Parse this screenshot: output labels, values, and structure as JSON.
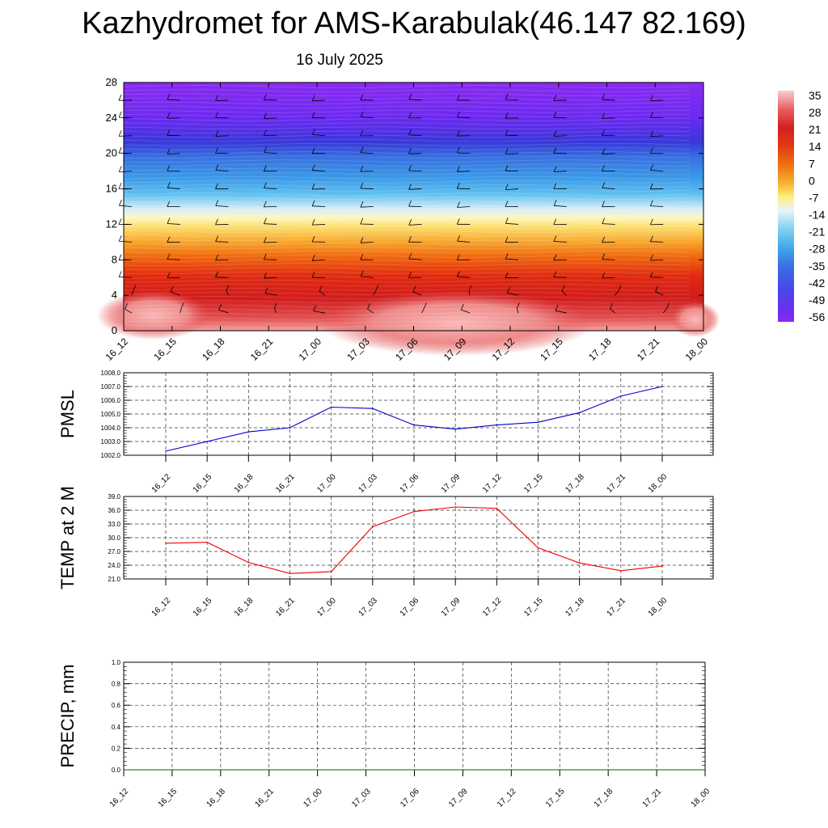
{
  "title": "Kazhydromet for AMS-Karabulak(46.147 82.169)",
  "subtitle": "16 July 2025",
  "chart_data": [
    {
      "type": "heatmap",
      "name": "temperature-cross-section",
      "yticks": [
        "0",
        "4",
        "8",
        "12",
        "16",
        "20",
        "24",
        "28"
      ],
      "ylim": [
        0,
        28
      ],
      "xticks": [
        "16_12",
        "16_15",
        "16_18",
        "16_21",
        "17_00",
        "17_03",
        "17_06",
        "17_09",
        "17_12",
        "17_15",
        "17_18",
        "17_21",
        "18_00"
      ],
      "colorbar": {
        "labels": [
          "35",
          "28",
          "21",
          "14",
          "7",
          "0",
          "-7",
          "-14",
          "-21",
          "-28",
          "-35",
          "-42",
          "-49",
          "-56"
        ],
        "colors": [
          "#f7c4c4",
          "#e86060",
          "#d42020",
          "#e03a10",
          "#f07010",
          "#f8b030",
          "#fdf080",
          "#e8f4f8",
          "#80d0f0",
          "#40a8e8",
          "#3a70e0",
          "#4848e8",
          "#6a30f0",
          "#8a2af0"
        ]
      },
      "wind_barbs": true
    },
    {
      "type": "line",
      "ylabel": "PMSL",
      "x": [
        "16_12",
        "16_15",
        "16_18",
        "16_21",
        "17_00",
        "17_03",
        "17_06",
        "17_09",
        "17_12",
        "17_15",
        "17_18",
        "17_21",
        "18_00"
      ],
      "series": [
        {
          "values": [
            1002.3,
            1003.0,
            1003.7,
            1004.0,
            1005.5,
            1005.4,
            1004.2,
            1003.9,
            1004.2,
            1004.4,
            1005.1,
            1006.3,
            1007.0
          ],
          "color": "#0000cc"
        }
      ],
      "ylim": [
        1002.0,
        1008.0
      ],
      "yticks": [
        "1002.0",
        "1003.0",
        "1004.0",
        "1005.0",
        "1006.0",
        "1007.0",
        "1008.0"
      ],
      "grid": true
    },
    {
      "type": "line",
      "ylabel": "TEMP at 2 M",
      "x": [
        "16_12",
        "16_15",
        "16_18",
        "16_21",
        "17_00",
        "17_03",
        "17_06",
        "17_09",
        "17_12",
        "17_15",
        "17_18",
        "17_21",
        "18_00"
      ],
      "series": [
        {
          "values": [
            28.8,
            29.0,
            24.6,
            22.2,
            22.6,
            32.4,
            35.7,
            36.7,
            36.4,
            27.8,
            24.5,
            22.8,
            23.8
          ],
          "color": "#ee0000"
        }
      ],
      "ylim": [
        21.0,
        39.0
      ],
      "yticks": [
        "21.0",
        "24.0",
        "27.0",
        "30.0",
        "33.0",
        "36.0",
        "39.0"
      ],
      "grid": true
    },
    {
      "type": "line",
      "ylabel": "PRECIP, mm",
      "x": [
        "16_12",
        "16_15",
        "16_18",
        "16_21",
        "17_00",
        "17_03",
        "17_06",
        "17_09",
        "17_12",
        "17_15",
        "17_18",
        "17_21",
        "18_00"
      ],
      "series": [
        {
          "values": [
            0,
            0,
            0,
            0,
            0,
            0,
            0,
            0,
            0,
            0,
            0,
            0,
            0
          ],
          "color": "#006400"
        }
      ],
      "ylim": [
        0.0,
        1.0
      ],
      "yticks": [
        "0.0",
        "0.2",
        "0.4",
        "0.6",
        "0.8",
        "1.0"
      ],
      "grid": true
    }
  ]
}
